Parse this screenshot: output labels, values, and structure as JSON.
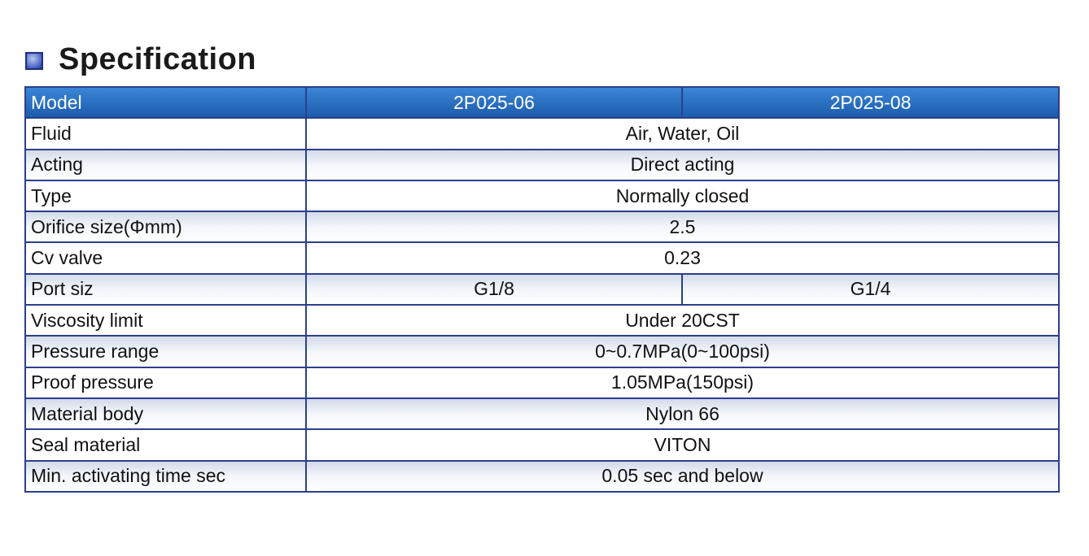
{
  "header": {
    "title": "Specification"
  },
  "table": {
    "header": [
      "Model",
      "2P025-06",
      "2P025-08"
    ],
    "rows": [
      [
        "Fluid",
        "Air, Water, Oil"
      ],
      [
        "Acting",
        "Direct acting"
      ],
      [
        "Type",
        "Normally closed"
      ],
      [
        "Orifice size(Φmm)",
        "2.5"
      ],
      [
        "Cv valve",
        "0.23"
      ],
      [
        "Port siz",
        "G1/8",
        "G1/4"
      ],
      [
        "Viscosity limit",
        "Under 20CST"
      ],
      [
        "Pressure range",
        "0~0.7MPa(0~100psi)"
      ],
      [
        "Proof pressure",
        "1.05MPa(150psi)"
      ],
      [
        "Material body",
        "Nylon 66"
      ],
      [
        "Seal material",
        "VITON"
      ],
      [
        "Min. activating time sec",
        "0.05 sec and below"
      ]
    ]
  }
}
